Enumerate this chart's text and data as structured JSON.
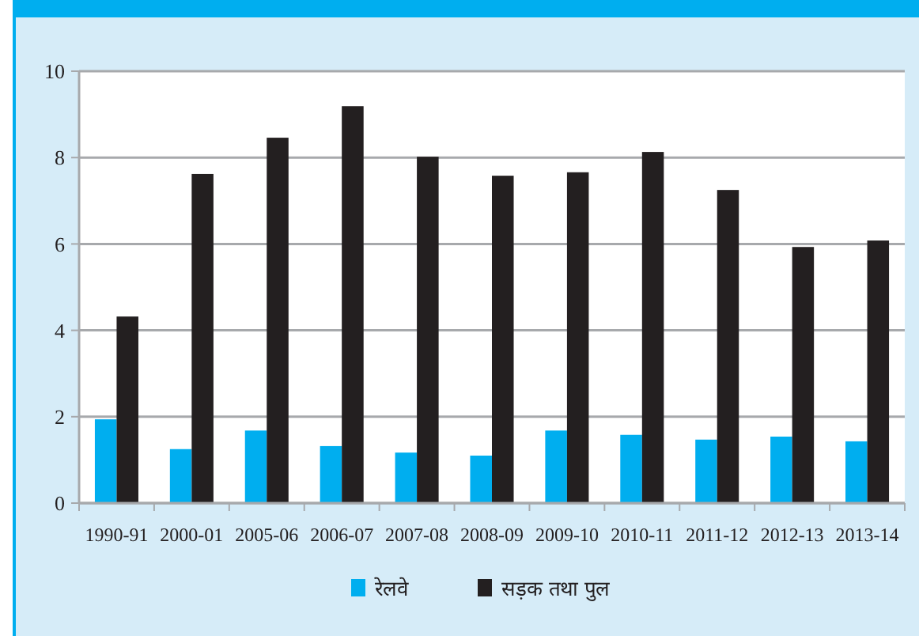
{
  "chart_data": {
    "type": "bar",
    "categories": [
      "1990-91",
      "2000-01",
      "2005-06",
      "2006-07",
      "2007-08",
      "2008-09",
      "2009-10",
      "2010-11",
      "2011-12",
      "2012-13",
      "2013-14"
    ],
    "series": [
      {
        "name": "रेलवे",
        "color": "#00aeef",
        "values": [
          1.94,
          1.25,
          1.68,
          1.32,
          1.17,
          1.1,
          1.68,
          1.58,
          1.47,
          1.54,
          1.43
        ]
      },
      {
        "name": "सड़क तथा पुल",
        "color": "#231f20",
        "values": [
          4.32,
          7.62,
          8.46,
          9.19,
          8.02,
          7.58,
          7.66,
          8.13,
          7.25,
          5.93,
          6.08
        ]
      }
    ],
    "ylim": [
      0,
      10
    ],
    "yticks": [
      0,
      2,
      4,
      6,
      8,
      10
    ],
    "grid": "y",
    "legend": "bottom"
  }
}
